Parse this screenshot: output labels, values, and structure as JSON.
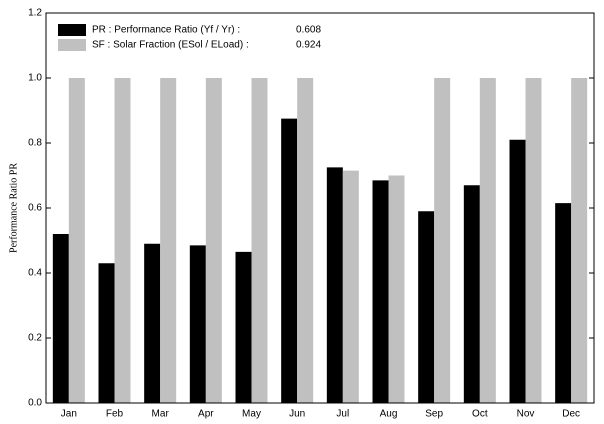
{
  "chart_data": {
    "type": "bar",
    "y_label": "Performance Ratio PR",
    "categories": [
      "Jan",
      "Feb",
      "Mar",
      "Apr",
      "May",
      "Jun",
      "Jul",
      "Aug",
      "Sep",
      "Oct",
      "Nov",
      "Dec"
    ],
    "series": [
      {
        "name": "PR : Performance Ratio (Yf / Yr) :",
        "legend_value": 0.608,
        "color": "#000000",
        "values": [
          0.52,
          0.43,
          0.49,
          0.485,
          0.465,
          0.875,
          0.725,
          0.685,
          0.59,
          0.67,
          0.81,
          0.615
        ]
      },
      {
        "name": "SF : Solar Fraction (ESol / ELoad) :",
        "legend_value": 0.924,
        "color": "#c0c0c0",
        "values": [
          1.0,
          1.0,
          1.0,
          1.0,
          1.0,
          1.0,
          0.715,
          0.7,
          1.0,
          1.0,
          1.0,
          1.0
        ]
      }
    ],
    "ylim": [
      0,
      1.2
    ],
    "yticks": [
      {
        "value": 0,
        "label": "0.0"
      },
      {
        "value": 0.2,
        "label": "0.2"
      },
      {
        "value": 0.4,
        "label": "0.4"
      },
      {
        "value": 0.6,
        "label": "0.6"
      },
      {
        "value": 0.8,
        "label": "0.8"
      },
      {
        "value": 1,
        "label": "1.0"
      },
      {
        "value": 1.2,
        "label": "1.2"
      }
    ],
    "grid": false,
    "legend": "top-left"
  }
}
